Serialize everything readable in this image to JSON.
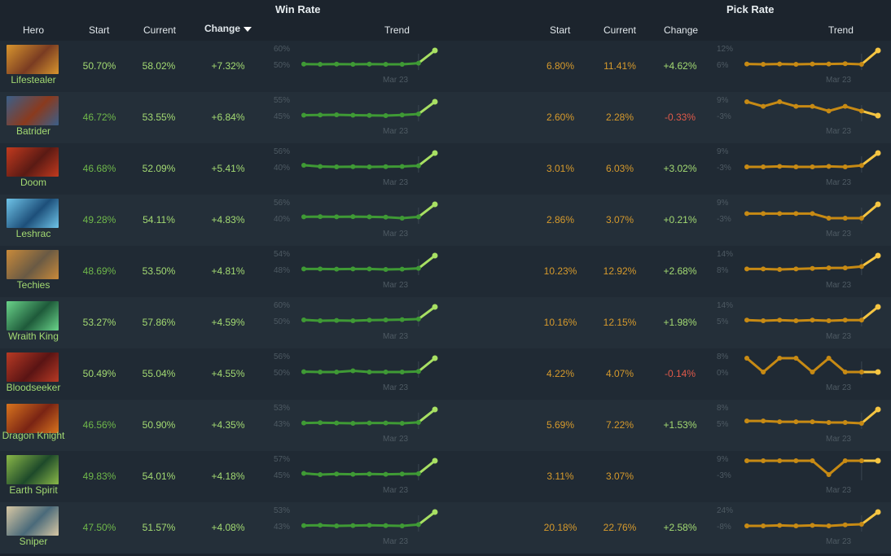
{
  "headers": {
    "win_rate_group": "Win Rate",
    "pick_rate_group": "Pick Rate",
    "hero": "Hero",
    "start": "Start",
    "current": "Current",
    "change": "Change",
    "trend": "Trend"
  },
  "colors": {
    "win_line": "#3f9a35",
    "win_line_last": "#a8e063",
    "pick_line": "#c78a14",
    "pick_line_last": "#f5c542",
    "text_green_bright": "#a3da72",
    "text_green_dim": "#6fb84a",
    "text_orange": "#d69a2c",
    "text_red": "#e05a4a",
    "axis_label": "#4e5a63"
  },
  "trend_date_label": "Mar 23",
  "rows": [
    {
      "hero": "Lifestealer",
      "portrait_color": "#7a3c22",
      "portrait_accent": "#d8952e",
      "wr_start": "50.70%",
      "wr_current": "58.02%",
      "wr_change": "+7.32%",
      "wr_start_dim": false,
      "wr_axis_hi": "60%",
      "wr_axis_lo": "50%",
      "wr_trend": [
        50.7,
        50.6,
        50.7,
        50.6,
        50.7,
        50.6,
        50.6,
        51.2,
        58.0
      ],
      "pr_start": "6.80%",
      "pr_current": "11.41%",
      "pr_change": "+4.62%",
      "pr_change_neg": false,
      "pr_axis_hi": "12%",
      "pr_axis_lo": "6%",
      "pr_trend": [
        6.8,
        6.7,
        6.8,
        6.7,
        6.8,
        6.8,
        6.9,
        6.7,
        11.4
      ]
    },
    {
      "hero": "Batrider",
      "portrait_color": "#8a3a1e",
      "portrait_accent": "#3a5f8a",
      "wr_start": "46.72%",
      "wr_current": "53.55%",
      "wr_change": "+6.84%",
      "wr_start_dim": true,
      "wr_axis_hi": "55%",
      "wr_axis_lo": "45%",
      "wr_trend": [
        46.7,
        46.8,
        46.9,
        46.7,
        46.6,
        46.5,
        46.8,
        47.3,
        53.5
      ],
      "pr_start": "2.60%",
      "pr_current": "2.28%",
      "pr_change": "-0.33%",
      "pr_change_neg": true,
      "pr_axis_hi": "9%",
      "pr_axis_lo": "-3%",
      "pr_trend": [
        2.6,
        2.5,
        2.6,
        2.5,
        2.5,
        2.4,
        2.5,
        2.4,
        2.3
      ]
    },
    {
      "hero": "Doom",
      "portrait_color": "#5a1a14",
      "portrait_accent": "#c23a1e",
      "wr_start": "46.68%",
      "wr_current": "52.09%",
      "wr_change": "+5.41%",
      "wr_start_dim": true,
      "wr_axis_hi": "56%",
      "wr_axis_lo": "40%",
      "wr_trend": [
        46.7,
        46.2,
        46.0,
        46.1,
        46.0,
        46.1,
        46.2,
        46.5,
        52.1
      ],
      "pr_start": "3.01%",
      "pr_current": "6.03%",
      "pr_change": "+3.02%",
      "pr_change_neg": false,
      "pr_axis_hi": "9%",
      "pr_axis_lo": "-3%",
      "pr_trend": [
        3.0,
        3.0,
        3.1,
        3.0,
        3.0,
        3.1,
        3.0,
        3.3,
        6.0
      ]
    },
    {
      "hero": "Leshrac",
      "portrait_color": "#1d4f7a",
      "portrait_accent": "#6fc4e8",
      "wr_start": "49.28%",
      "wr_current": "54.11%",
      "wr_change": "+4.83%",
      "wr_start_dim": true,
      "wr_axis_hi": "56%",
      "wr_axis_lo": "40%",
      "wr_trend": [
        49.3,
        49.4,
        49.3,
        49.4,
        49.3,
        49.2,
        48.8,
        49.3,
        54.1
      ],
      "pr_start": "2.86%",
      "pr_current": "3.07%",
      "pr_change": "+0.21%",
      "pr_change_neg": false,
      "pr_axis_hi": "9%",
      "pr_axis_lo": "-3%",
      "pr_trend": [
        2.9,
        2.9,
        2.9,
        2.9,
        2.9,
        2.8,
        2.8,
        2.8,
        3.1
      ]
    },
    {
      "hero": "Techies",
      "portrait_color": "#6a5a44",
      "portrait_accent": "#c98a3a",
      "wr_start": "48.69%",
      "wr_current": "53.50%",
      "wr_change": "+4.81%",
      "wr_start_dim": true,
      "wr_axis_hi": "54%",
      "wr_axis_lo": "48%",
      "wr_trend": [
        48.7,
        48.7,
        48.6,
        48.7,
        48.7,
        48.5,
        48.6,
        48.9,
        53.5
      ],
      "pr_start": "10.23%",
      "pr_current": "12.92%",
      "pr_change": "+2.68%",
      "pr_change_neg": false,
      "pr_axis_hi": "14%",
      "pr_axis_lo": "8%",
      "pr_trend": [
        10.2,
        10.2,
        10.1,
        10.2,
        10.3,
        10.4,
        10.4,
        10.7,
        12.9
      ]
    },
    {
      "hero": "Wraith King",
      "portrait_color": "#1e5a3a",
      "portrait_accent": "#6ad48a",
      "wr_start": "53.27%",
      "wr_current": "57.86%",
      "wr_change": "+4.59%",
      "wr_start_dim": false,
      "wr_axis_hi": "60%",
      "wr_axis_lo": "50%",
      "wr_trend": [
        53.3,
        53.0,
        53.1,
        53.0,
        53.2,
        53.3,
        53.4,
        53.6,
        57.9
      ],
      "pr_start": "10.16%",
      "pr_current": "12.15%",
      "pr_change": "+1.98%",
      "pr_change_neg": false,
      "pr_axis_hi": "14%",
      "pr_axis_lo": "5%",
      "pr_trend": [
        10.2,
        10.1,
        10.2,
        10.1,
        10.2,
        10.1,
        10.2,
        10.2,
        12.2
      ]
    },
    {
      "hero": "Bloodseeker",
      "portrait_color": "#5a1414",
      "portrait_accent": "#b83a24",
      "wr_start": "50.49%",
      "wr_current": "55.04%",
      "wr_change": "+4.55%",
      "wr_start_dim": false,
      "wr_axis_hi": "56%",
      "wr_axis_lo": "50%",
      "wr_trend": [
        50.5,
        50.4,
        50.4,
        50.8,
        50.4,
        50.4,
        50.4,
        50.6,
        55.0
      ],
      "pr_start": "4.22%",
      "pr_current": "4.07%",
      "pr_change": "-0.14%",
      "pr_change_neg": true,
      "pr_axis_hi": "8%",
      "pr_axis_lo": "0%",
      "pr_trend": [
        4.2,
        4.1,
        4.2,
        4.2,
        4.1,
        4.2,
        4.1,
        4.1,
        4.1
      ]
    },
    {
      "hero": "Dragon Knight",
      "portrait_color": "#7a2414",
      "portrait_accent": "#d8741e",
      "wr_start": "46.56%",
      "wr_current": "50.90%",
      "wr_change": "+4.35%",
      "wr_start_dim": true,
      "wr_axis_hi": "53%",
      "wr_axis_lo": "43%",
      "wr_trend": [
        46.6,
        46.7,
        46.6,
        46.5,
        46.6,
        46.6,
        46.5,
        46.8,
        50.9
      ],
      "pr_start": "5.69%",
      "pr_current": "7.22%",
      "pr_change": "+1.53%",
      "pr_change_neg": false,
      "pr_axis_hi": "8%",
      "pr_axis_lo": "5%",
      "pr_trend": [
        5.7,
        5.7,
        5.6,
        5.6,
        5.6,
        5.5,
        5.5,
        5.4,
        7.2
      ]
    },
    {
      "hero": "Earth Spirit",
      "portrait_color": "#1e4a2a",
      "portrait_accent": "#8ab848",
      "wr_start": "49.83%",
      "wr_current": "54.01%",
      "wr_change": "+4.18%",
      "wr_start_dim": true,
      "wr_axis_hi": "57%",
      "wr_axis_lo": "45%",
      "wr_trend": [
        49.8,
        49.4,
        49.6,
        49.5,
        49.6,
        49.5,
        49.6,
        49.7,
        54.0
      ],
      "pr_start": "3.11%",
      "pr_current": "3.07%",
      "pr_change": "",
      "pr_change_neg": false,
      "pr_axis_hi": "9%",
      "pr_axis_lo": "-3%",
      "pr_trend": [
        3.1,
        3.1,
        3.1,
        3.1,
        3.1,
        3.0,
        3.1,
        3.1,
        3.1
      ]
    },
    {
      "hero": "Sniper",
      "portrait_color": "#4a6a7a",
      "portrait_accent": "#d8c8a4",
      "wr_start": "47.50%",
      "wr_current": "51.57%",
      "wr_change": "+4.08%",
      "wr_start_dim": true,
      "wr_axis_hi": "53%",
      "wr_axis_lo": "43%",
      "wr_trend": [
        47.5,
        47.6,
        47.4,
        47.5,
        47.6,
        47.5,
        47.4,
        47.8,
        51.6
      ],
      "pr_start": "20.18%",
      "pr_current": "22.76%",
      "pr_change": "+2.58%",
      "pr_change_neg": false,
      "pr_axis_hi": "24%",
      "pr_axis_lo": "-8%",
      "pr_trend": [
        20.2,
        20.2,
        20.3,
        20.2,
        20.3,
        20.2,
        20.4,
        20.5,
        22.8
      ]
    }
  ]
}
